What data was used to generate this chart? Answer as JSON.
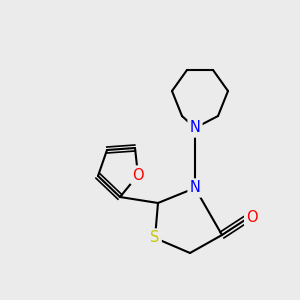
{
  "bg_color": "#ebebeb",
  "atom_colors": {
    "N": "#0000ff",
    "O": "#ff0000",
    "S": "#c8c800",
    "C": "#000000"
  },
  "bond_color": "#000000",
  "bond_width": 1.5,
  "font_size": 10.5
}
